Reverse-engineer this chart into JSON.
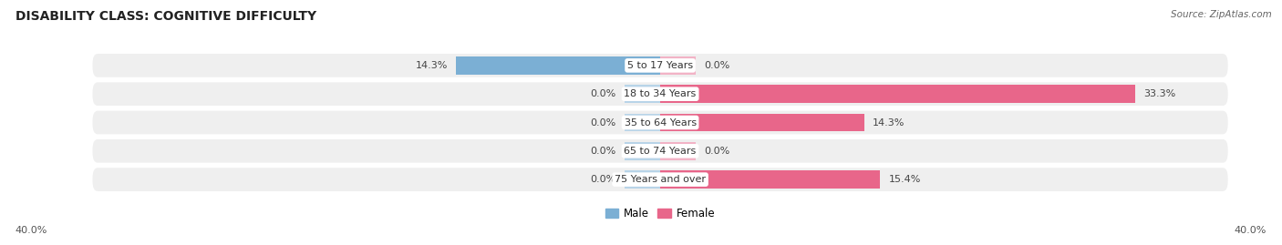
{
  "title": "DISABILITY CLASS: COGNITIVE DIFFICULTY",
  "source": "Source: ZipAtlas.com",
  "categories": [
    "5 to 17 Years",
    "18 to 34 Years",
    "35 to 64 Years",
    "65 to 74 Years",
    "75 Years and over"
  ],
  "male_values": [
    14.3,
    0.0,
    0.0,
    0.0,
    0.0
  ],
  "female_values": [
    0.0,
    33.3,
    14.3,
    0.0,
    15.4
  ],
  "male_color": "#7bafd4",
  "male_color_light": "#b8d4e8",
  "female_color": "#e8668a",
  "female_color_light": "#f2b3c6",
  "max_val": 40.0,
  "stub_val": 2.5,
  "bar_height": 0.62,
  "row_bg_color": "#efefef",
  "background_color": "#ffffff",
  "title_fontsize": 10,
  "label_fontsize": 8,
  "axis_label_fontsize": 8,
  "legend_fontsize": 8.5
}
